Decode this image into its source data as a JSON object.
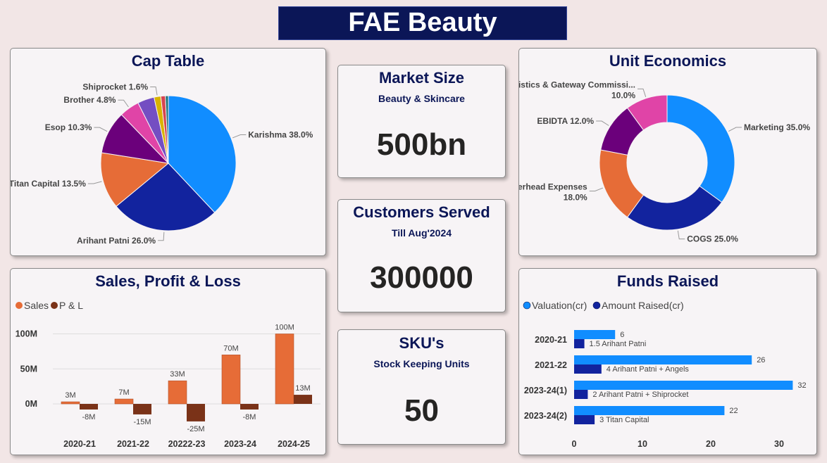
{
  "title": "FAE Beauty",
  "cap_table": {
    "title": "Cap Table",
    "chart_data": {
      "type": "pie",
      "title": "Cap Table",
      "slices": [
        {
          "label": "Karishma",
          "value": 38.0,
          "display": "Karishma 38.0%",
          "color": "#118dff"
        },
        {
          "label": "Arihant Patni",
          "value": 26.0,
          "display": "Arihant Patni 26.0%",
          "color": "#12239e"
        },
        {
          "label": "Titan Capital",
          "value": 13.5,
          "display": "Titan Capital 13.5%",
          "color": "#e66c37"
        },
        {
          "label": "Esop",
          "value": 10.3,
          "display": "Esop 10.3%",
          "color": "#6b007b"
        },
        {
          "label": "Brother",
          "value": 4.8,
          "display": "Brother 4.8%",
          "color": "#e044a7"
        },
        {
          "label": "",
          "value": 4.0,
          "display": "",
          "color": "#744ec2"
        },
        {
          "label": "Shiprocket",
          "value": 1.6,
          "display": "Shiprocket 1.6%",
          "color": "#d9b300"
        },
        {
          "label": "",
          "value": 1.1,
          "display": "",
          "color": "#d64550"
        },
        {
          "label": "",
          "value": 0.7,
          "display": "",
          "color": "#197278"
        }
      ]
    }
  },
  "market_size": {
    "title": "Market Size",
    "subtitle": "Beauty & Skincare",
    "value": "500bn"
  },
  "customers": {
    "title": "Customers Served",
    "subtitle": "Till Aug'2024",
    "value": "300000"
  },
  "sku": {
    "title": "SKU's",
    "subtitle": "Stock Keeping Units",
    "value": "50"
  },
  "unit_economics": {
    "title": "Unit Economics",
    "chart_data": {
      "type": "pie",
      "subtype": "donut",
      "title": "Unit Economics",
      "slices": [
        {
          "label": "Marketing",
          "value": 35.0,
          "display": "Marketing 35.0%",
          "color": "#118dff"
        },
        {
          "label": "COGS",
          "value": 25.0,
          "display": "COGS 25.0%",
          "color": "#12239e"
        },
        {
          "label": "Overhead Expenses",
          "value": 18.0,
          "display": "Overhead Expenses",
          "display2": "18.0%",
          "color": "#e66c37"
        },
        {
          "label": "EBIDTA",
          "value": 12.0,
          "display": "EBIDTA 12.0%",
          "color": "#6b007b"
        },
        {
          "label": "Logistics & Gateway Commission",
          "value": 10.0,
          "display": "ogistics & Gateway Commissi...",
          "display2": "10.0%",
          "color": "#e044a7"
        }
      ]
    }
  },
  "sales": {
    "title": "Sales, Profit & Loss",
    "chart_data": {
      "type": "bar",
      "title": "Sales, Profit & Loss",
      "categories": [
        "2020-21",
        "2021-22",
        "20222-23",
        "2023-24",
        "2024-25"
      ],
      "series": [
        {
          "name": "Sales",
          "values": [
            3,
            7,
            33,
            70,
            100
          ],
          "labels": [
            "3M",
            "7M",
            "33M",
            "70M",
            "100M"
          ],
          "color": "#e66c37"
        },
        {
          "name": "P & L",
          "values": [
            -8,
            -15,
            -25,
            -8,
            13
          ],
          "labels": [
            "-8M",
            "-15M",
            "-25M",
            "-8M",
            "13M"
          ],
          "color": "#7a3218"
        }
      ],
      "yticks": [
        {
          "v": 100,
          "t": "100M"
        },
        {
          "v": 50,
          "t": "50M"
        },
        {
          "v": 0,
          "t": "0M"
        }
      ],
      "ylim": [
        -32,
        112
      ],
      "grid": true,
      "legend": "top-left"
    }
  },
  "funds": {
    "title": "Funds Raised",
    "chart_data": {
      "type": "bar",
      "orientation": "horizontal",
      "title": "Funds Raised",
      "categories": [
        "2020-21",
        "2021-22",
        "2023-24(1)",
        "2023-24(2)"
      ],
      "series": [
        {
          "name": "Valuation(cr)",
          "values": [
            6,
            26,
            32,
            22
          ],
          "labels": [
            "6",
            "26",
            "32",
            "22"
          ],
          "color": "#118dff"
        },
        {
          "name": "Amount Raised(cr)",
          "values": [
            1.5,
            4,
            2,
            3
          ],
          "labels": [
            "1.5 Arihant Patni",
            "4 Arihant Patni + Angels",
            "2 Arihant Patni + Shiprocket",
            "3 Titan Capital"
          ],
          "color": "#12239e"
        }
      ],
      "xticks": [
        0,
        10,
        20,
        30
      ],
      "xlim": [
        0,
        33
      ],
      "legend": "top-left"
    }
  }
}
